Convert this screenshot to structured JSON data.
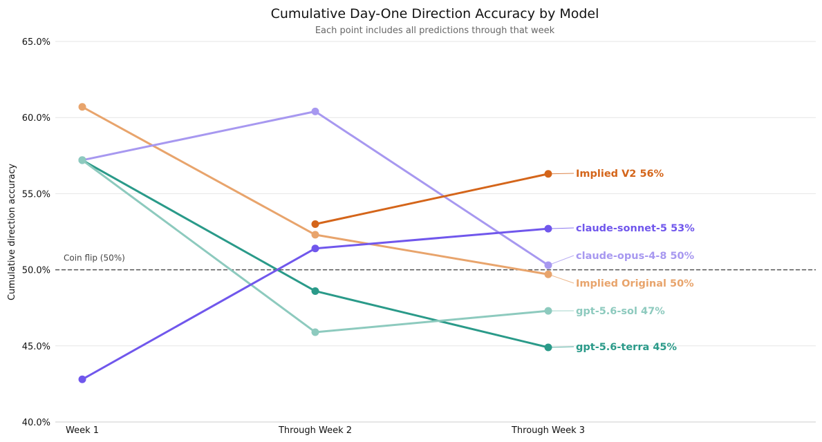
{
  "chart_data": {
    "type": "line",
    "title": "Cumulative Day-One Direction Accuracy by Model",
    "subtitle": "Each point includes all predictions through that week",
    "xlabel": "",
    "ylabel": "Cumulative direction accuracy",
    "categories": [
      "Week 1",
      "Through Week 2",
      "Through Week 3"
    ],
    "ylim": [
      40.0,
      65.0
    ],
    "yticks": [
      "40.0%",
      "45.0%",
      "50.0%",
      "55.0%",
      "60.0%",
      "65.0%"
    ],
    "ytick_values": [
      40,
      45,
      50,
      55,
      60,
      65
    ],
    "grid": "horizontal",
    "reference_line": {
      "value": 50,
      "label": "Coin flip (50%)",
      "style": "dashed"
    },
    "series": [
      {
        "name": "Implied Original",
        "label": "Implied Original  50%",
        "color": "#E8A46C",
        "values": [
          60.7,
          52.3,
          49.7
        ]
      },
      {
        "name": "claude-opus-4-8",
        "label": "claude-opus-4-8  50%",
        "color": "#A798F0",
        "values": [
          57.2,
          60.4,
          50.3
        ]
      },
      {
        "name": "gpt-5.6-terra",
        "label": "gpt-5.6-terra  45%",
        "color": "#2A9A89",
        "values": [
          57.2,
          48.6,
          44.9
        ]
      },
      {
        "name": "gpt-5.6-sol",
        "label": "gpt-5.6-sol  47%",
        "color": "#8DCABE",
        "values": [
          57.2,
          45.9,
          47.3
        ]
      },
      {
        "name": "claude-sonnet-5",
        "label": "claude-sonnet-5  53%",
        "color": "#7057EC",
        "values": [
          42.8,
          51.4,
          52.7
        ]
      },
      {
        "name": "Implied V2",
        "label": "Implied V2  56%",
        "color": "#D4651A",
        "values": [
          null,
          53.0,
          56.3
        ]
      }
    ]
  }
}
